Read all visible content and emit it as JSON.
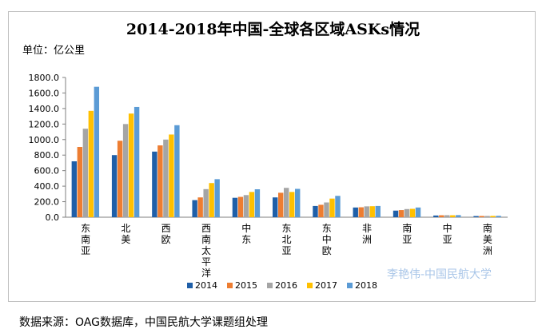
{
  "chart_data": {
    "type": "bar",
    "title": "2014-2018年中国-全球各区域ASKs情况",
    "unit_label": "单位：亿公里",
    "ylim": [
      0,
      1800
    ],
    "yticks": [
      "0.0",
      "200.0",
      "400.0",
      "600.0",
      "800.0",
      "1000.0",
      "1200.0",
      "1400.0",
      "1600.0",
      "1800.0"
    ],
    "yticks_values": [
      0,
      200,
      400,
      600,
      800,
      1000,
      1200,
      1400,
      1600,
      1800
    ],
    "grid": false,
    "legend_position": "bottom",
    "categories": [
      "东南亚",
      "北美",
      "西欧",
      "西南太平洋",
      "中东",
      "东北亚",
      "东中欧",
      "非洲",
      "南亚",
      "中亚",
      "南美洲"
    ],
    "series": [
      {
        "name": "2014",
        "color": "#1f5fa8",
        "values": [
          720,
          800,
          845,
          220,
          250,
          255,
          145,
          125,
          85,
          22,
          15
        ]
      },
      {
        "name": "2015",
        "color": "#ed7d31",
        "values": [
          905,
          985,
          925,
          255,
          262,
          315,
          160,
          128,
          92,
          25,
          16
        ]
      },
      {
        "name": "2016",
        "color": "#a5a5a5",
        "values": [
          1140,
          1200,
          1000,
          362,
          285,
          378,
          190,
          140,
          105,
          26,
          16
        ]
      },
      {
        "name": "2017",
        "color": "#ffc000",
        "values": [
          1370,
          1335,
          1065,
          440,
          325,
          325,
          240,
          142,
          108,
          25,
          17
        ]
      },
      {
        "name": "2018",
        "color": "#5b9bd5",
        "values": [
          1680,
          1420,
          1185,
          490,
          360,
          365,
          275,
          145,
          125,
          27,
          18
        ]
      }
    ]
  },
  "source_note": "数据来源：OAG数据库，中国民航大学课题组处理",
  "watermark": "李艳伟-中国民航大学"
}
